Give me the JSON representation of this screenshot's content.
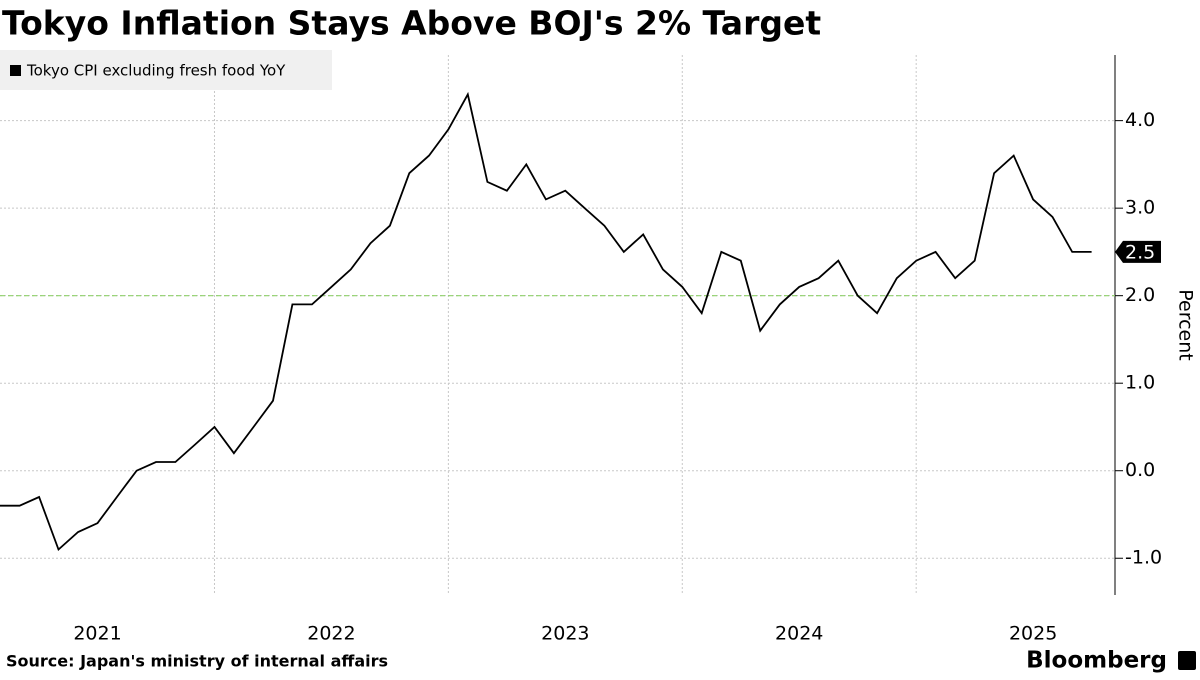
{
  "chart_data": {
    "type": "line",
    "title": "Tokyo Inflation Stays Above BOJ's 2% Target",
    "y_axis_label": "Percent",
    "source": "Source: Japan's ministry of internal affairs",
    "brand": "Bloomberg",
    "x": [
      2021.083,
      2021.167,
      2021.25,
      2021.333,
      2021.417,
      2021.5,
      2021.583,
      2021.667,
      2021.75,
      2021.833,
      2021.917,
      2022,
      2022.083,
      2022.167,
      2022.25,
      2022.333,
      2022.417,
      2022.5,
      2022.583,
      2022.667,
      2022.75,
      2022.833,
      2022.917,
      2023,
      2023.083,
      2023.167,
      2023.25,
      2023.333,
      2023.417,
      2023.5,
      2023.583,
      2023.667,
      2023.75,
      2023.833,
      2023.917,
      2024,
      2024.083,
      2024.167,
      2024.25,
      2024.333,
      2024.417,
      2024.5,
      2024.583,
      2024.667,
      2024.75,
      2024.833,
      2024.917,
      2025,
      2025.083,
      2025.167,
      2025.25,
      2025.333,
      2025.417,
      2025.5,
      2025.583,
      2025.667,
      2025.75
    ],
    "series": [
      {
        "name": "Tokyo CPI excluding fresh food YoY",
        "color": "#000000",
        "values": [
          -0.4,
          -0.4,
          -0.3,
          -0.9,
          -0.7,
          -0.6,
          -0.3,
          0.0,
          0.1,
          0.1,
          0.3,
          0.5,
          0.2,
          0.5,
          0.8,
          1.9,
          1.9,
          2.1,
          2.3,
          2.6,
          2.8,
          3.4,
          3.6,
          3.9,
          4.3,
          3.3,
          3.2,
          3.5,
          3.1,
          3.2,
          3.0,
          2.8,
          2.5,
          2.7,
          2.3,
          2.1,
          1.8,
          2.5,
          2.4,
          1.6,
          1.9,
          2.1,
          2.2,
          2.4,
          2.0,
          1.8,
          2.2,
          2.4,
          2.5,
          2.2,
          2.4,
          3.4,
          3.6,
          3.1,
          2.9,
          2.5,
          2.5
        ]
      }
    ],
    "xlim": [
      2021.083,
      2025.85
    ],
    "xticks": [
      {
        "value": 2021.5,
        "label": "2021"
      },
      {
        "value": 2022.5,
        "label": "2022"
      },
      {
        "value": 2023.5,
        "label": "2023"
      },
      {
        "value": 2024.5,
        "label": "2024"
      },
      {
        "value": 2025.5,
        "label": "2025"
      }
    ],
    "xgrid": [
      2022,
      2023,
      2024,
      2025
    ],
    "ylim": [
      -1.42,
      4.75
    ],
    "yticks": [
      {
        "value": -1,
        "label": "-1.0"
      },
      {
        "value": 0,
        "label": "0.0"
      },
      {
        "value": 1,
        "label": "1.0"
      },
      {
        "value": 2,
        "label": "2.0"
      },
      {
        "value": 3,
        "label": "3.0"
      },
      {
        "value": 4,
        "label": "4.0"
      }
    ],
    "grid": true,
    "reference_line": {
      "value": 2,
      "color": "#8fd16a"
    },
    "legend": "top-left",
    "last_value_label": true
  }
}
